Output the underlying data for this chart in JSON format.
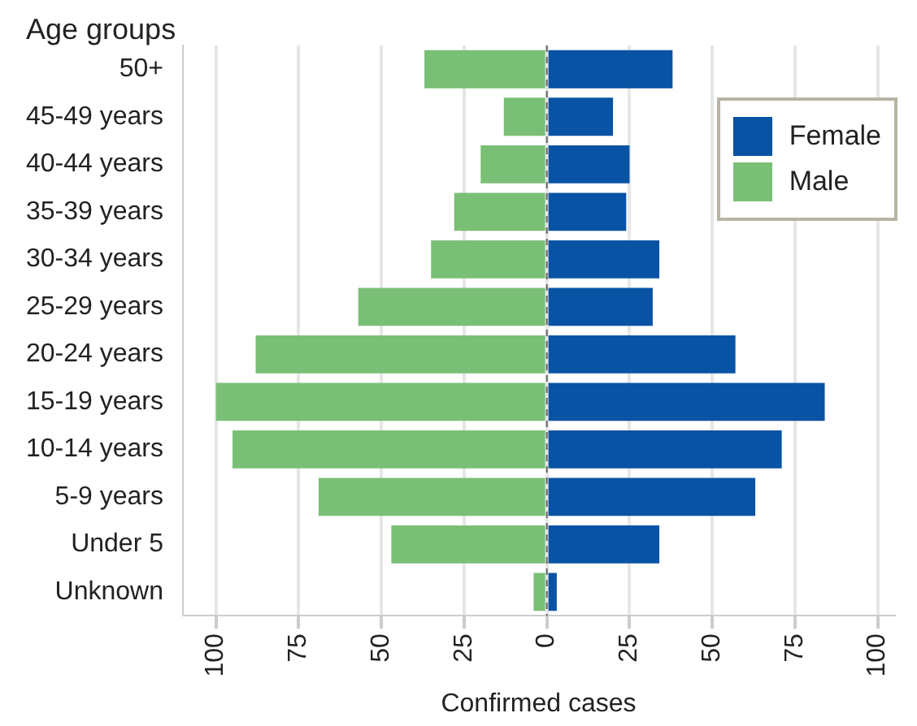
{
  "chart_data": {
    "type": "bar",
    "orientation": "horizontal",
    "stacked": true,
    "ylabel": "Age groups",
    "xlabel": "Confirmed cases",
    "categories": [
      "50+",
      "45-49 years",
      "40-44 years",
      "35-39 years",
      "30-34 years",
      "25-29 years",
      "20-24 years",
      "15-19 years",
      "10-14 years",
      "5-9 years",
      "Under 5",
      "Unknown"
    ],
    "series": [
      {
        "name": "Female",
        "color": "#0853a4",
        "values": [
          38,
          20,
          25,
          24,
          34,
          32,
          57,
          84,
          71,
          63,
          34,
          3
        ]
      },
      {
        "name": "Male",
        "color": "#7abf76",
        "values": [
          -37,
          -13,
          -20,
          -28,
          -35,
          -57,
          -88,
          -100,
          -95,
          -69,
          -47,
          -4
        ]
      }
    ],
    "xlim": [
      -110,
      105
    ],
    "xticks": [
      {
        "value": -100,
        "label": "100"
      },
      {
        "value": -75,
        "label": "75"
      },
      {
        "value": -50,
        "label": "50"
      },
      {
        "value": -25,
        "label": "25"
      },
      0,
      25,
      50,
      75,
      100
    ],
    "ref_lines": [
      {
        "axis": "x",
        "value": 0,
        "color": "#666666",
        "line_style": "dashed"
      }
    ],
    "grid": "x",
    "legend": "top right"
  }
}
